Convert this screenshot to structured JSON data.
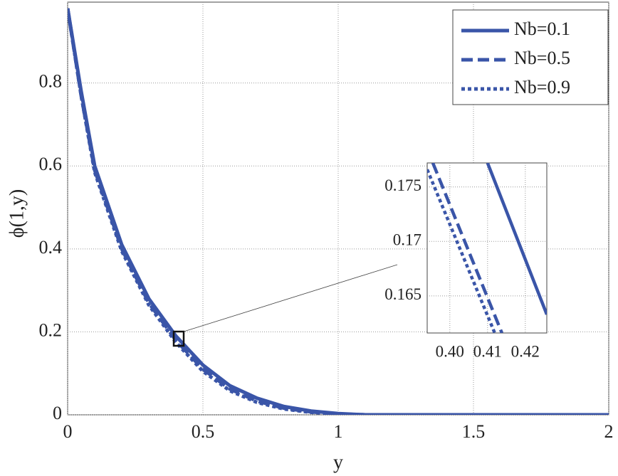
{
  "chart_data": [
    {
      "type": "line",
      "xlabel": "y",
      "ylabel": "ϕ(1,y)",
      "xlim": [
        0,
        2
      ],
      "ylim": [
        0,
        0.995
      ],
      "xticks": [
        0,
        0.5,
        1,
        1.5,
        2
      ],
      "yticks": [
        0,
        0.2,
        0.4,
        0.6,
        0.8
      ],
      "grid": true,
      "legend": "upper right",
      "x": [
        0,
        0.05,
        0.1,
        0.2,
        0.3,
        0.4,
        0.5,
        0.6,
        0.7,
        0.8,
        0.9,
        1.0,
        1.1,
        2
      ],
      "series": [
        {
          "name": "Nb=0.1",
          "color": "#3a55a8",
          "style": "solid",
          "values": [
            0.98,
            0.78,
            0.6,
            0.41,
            0.28,
            0.19,
            0.12,
            0.07,
            0.04,
            0.02,
            0.009,
            0.003,
            0,
            0
          ]
        },
        {
          "name": "Nb=0.5",
          "color": "#3a55a8",
          "style": "dashed",
          "values": [
            0.98,
            0.77,
            0.59,
            0.4,
            0.27,
            0.18,
            0.11,
            0.062,
            0.033,
            0.016,
            0.007,
            0.002,
            0,
            0
          ]
        },
        {
          "name": "Nb=0.9",
          "color": "#3a55a8",
          "style": "dotted",
          "values": [
            0.98,
            0.77,
            0.585,
            0.395,
            0.265,
            0.175,
            0.105,
            0.058,
            0.03,
            0.014,
            0.006,
            0.002,
            0,
            0
          ]
        }
      ]
    },
    {
      "type": "line",
      "xlim": [
        0.394,
        0.4257
      ],
      "ylim": [
        0.1616,
        0.1772
      ],
      "xticks": [
        {
          "value": 0.4,
          "label": "0.40"
        },
        0.41,
        0.42
      ],
      "yticks": [
        0.165,
        0.17,
        0.175
      ],
      "grid": true,
      "series": [
        {
          "color": "#3a55a8",
          "style": "solid",
          "x": [
            0.41,
            0.4257
          ],
          "values": [
            0.1772,
            0.1633
          ]
        },
        {
          "color": "#3a55a8",
          "style": "dashed",
          "x": [
            0.3955,
            0.4138
          ],
          "values": [
            0.1772,
            0.1616
          ]
        },
        {
          "color": "#3a55a8",
          "style": "dotted",
          "x": [
            0.394,
            0.4119
          ],
          "values": [
            0.1766,
            0.1616
          ]
        }
      ]
    }
  ]
}
